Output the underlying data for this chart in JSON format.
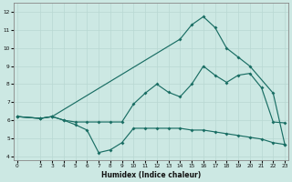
{
  "xlabel": "Humidex (Indice chaleur)",
  "bg_color": "#cce8e3",
  "grid_color": "#b8d8d2",
  "line_color": "#1a6e64",
  "xlim": [
    -0.3,
    23.3
  ],
  "ylim": [
    3.8,
    12.5
  ],
  "xticks": [
    0,
    2,
    3,
    4,
    5,
    6,
    7,
    8,
    9,
    10,
    11,
    12,
    13,
    14,
    15,
    16,
    17,
    18,
    19,
    20,
    21,
    22,
    23
  ],
  "yticks": [
    4,
    5,
    6,
    7,
    8,
    9,
    10,
    11,
    12
  ],
  "line1_x": [
    0,
    2,
    3,
    4,
    5,
    6,
    7,
    8,
    9,
    10,
    11,
    12,
    13,
    14,
    15,
    16,
    17,
    18,
    19,
    20,
    21,
    22,
    23
  ],
  "line1_y": [
    6.2,
    6.1,
    6.2,
    6.0,
    5.75,
    5.45,
    4.2,
    4.35,
    4.75,
    5.55,
    5.55,
    5.55,
    5.55,
    5.55,
    5.45,
    5.45,
    5.35,
    5.25,
    5.15,
    5.05,
    4.95,
    4.75,
    4.65
  ],
  "line2_x": [
    0,
    2,
    3,
    4,
    5,
    6,
    7,
    8,
    9,
    10,
    11,
    12,
    13,
    14,
    15,
    16,
    17,
    18,
    19,
    20,
    21,
    22,
    23
  ],
  "line2_y": [
    6.2,
    6.1,
    6.2,
    6.0,
    5.9,
    5.9,
    5.9,
    5.9,
    5.9,
    6.9,
    7.5,
    8.0,
    7.55,
    7.3,
    8.0,
    9.0,
    8.5,
    8.1,
    8.5,
    8.6,
    7.8,
    5.9,
    5.85
  ],
  "line3_x": [
    0,
    2,
    3,
    14,
    15,
    16,
    17,
    18,
    19,
    20,
    22,
    23
  ],
  "line3_y": [
    6.2,
    6.1,
    6.2,
    10.5,
    11.3,
    11.75,
    11.15,
    10.0,
    9.5,
    9.0,
    7.5,
    4.65
  ]
}
